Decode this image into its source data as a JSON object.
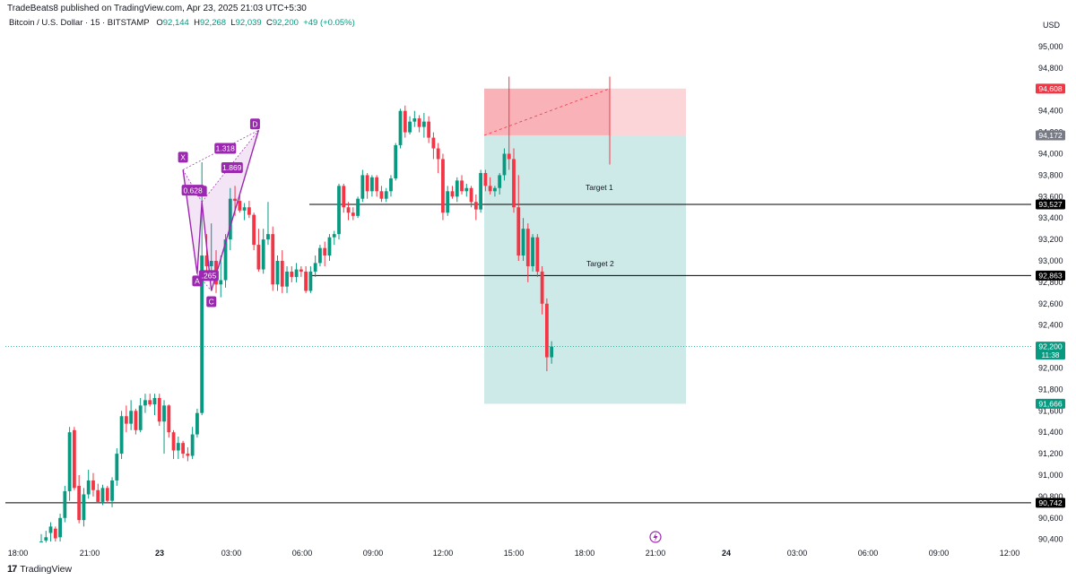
{
  "header": {
    "publisher_line": "TradeBeats8 published on TradingView.com, Apr 23, 2025 21:03 UTC+5:30",
    "symbol": "Bitcoin / U.S. Dollar · 15 · BITSTAMP",
    "open_label": "O",
    "open": "92,144",
    "high_label": "H",
    "high": "92,268",
    "low_label": "L",
    "low": "92,039",
    "close_label": "C",
    "close": "92,200",
    "change": "+49 (+0.05%)",
    "currency": "USD"
  },
  "footer": {
    "brand": "TradingView"
  },
  "colors": {
    "up": "#089981",
    "down": "#f23645",
    "pattern": "#9c27b0",
    "target_zone": "#b2dfdb",
    "stop_zone": "#f7a1a8"
  },
  "chart_data": {
    "type": "candlestick",
    "timeframe": "15",
    "exchange": "BITSTAMP",
    "x_ticks": [
      "18:00",
      "21:00",
      "23",
      "03:00",
      "06:00",
      "09:00",
      "12:00",
      "15:00",
      "18:00",
      "21:00",
      "24",
      "03:00",
      "06:00",
      "09:00",
      "12:00"
    ],
    "y_ticks": [
      90400,
      90600,
      90800,
      91000,
      91200,
      91400,
      91600,
      91800,
      92000,
      92200,
      92400,
      92600,
      92800,
      93000,
      93200,
      93400,
      93600,
      93800,
      94000,
      94200,
      94400,
      94600,
      94800,
      95000
    ],
    "y_tick_labels": [
      "90,400",
      "90,600",
      "90,800",
      "91,000",
      "91,200",
      "91,400",
      "91,600",
      "91,800",
      "92,000",
      "92,200",
      "92,400",
      "92,600",
      "92,800",
      "93,000",
      "93,200",
      "93,400",
      "93,600",
      "93,800",
      "94,000",
      "94,200",
      "94,400",
      "94,600",
      "94,800",
      "95,000"
    ],
    "ylim": [
      90350,
      95150
    ],
    "price_labels": [
      {
        "value": 94608,
        "text": "94,608",
        "color": "#f23645"
      },
      {
        "value": 94172,
        "text": "94,172",
        "color": "#787b86"
      },
      {
        "value": 93527,
        "text": "93,527",
        "color": "#000000"
      },
      {
        "value": 92863,
        "text": "92,863",
        "color": "#000000"
      },
      {
        "value": 92200,
        "text": "92,200",
        "sub": "11:38",
        "color": "#089981"
      },
      {
        "value": 91666,
        "text": "91,666",
        "color": "#089981"
      },
      {
        "value": 90742,
        "text": "90,742",
        "color": "#000000"
      }
    ],
    "horizontal_lines": [
      93527,
      92863,
      90742
    ],
    "last_price": 92200,
    "candles": [
      {
        "o": 90380,
        "h": 90450,
        "l": 90380,
        "c": 90380
      },
      {
        "o": 90390,
        "h": 90480,
        "l": 90370,
        "c": 90420
      },
      {
        "o": 90460,
        "h": 90560,
        "l": 90380,
        "c": 90520
      },
      {
        "o": 90500,
        "h": 90520,
        "l": 90380,
        "c": 90410
      },
      {
        "o": 90420,
        "h": 90640,
        "l": 90380,
        "c": 90600
      },
      {
        "o": 90600,
        "h": 90900,
        "l": 90560,
        "c": 90850
      },
      {
        "o": 90850,
        "h": 91450,
        "l": 90760,
        "c": 91400
      },
      {
        "o": 91420,
        "h": 91450,
        "l": 90860,
        "c": 90880
      },
      {
        "o": 90900,
        "h": 91000,
        "l": 90550,
        "c": 90580
      },
      {
        "o": 90580,
        "h": 90880,
        "l": 90520,
        "c": 90820
      },
      {
        "o": 90820,
        "h": 91050,
        "l": 90780,
        "c": 90950
      },
      {
        "o": 90950,
        "h": 91020,
        "l": 90800,
        "c": 90860
      },
      {
        "o": 90860,
        "h": 90920,
        "l": 90740,
        "c": 90750
      },
      {
        "o": 90750,
        "h": 90910,
        "l": 90720,
        "c": 90880
      },
      {
        "o": 90880,
        "h": 90900,
        "l": 90740,
        "c": 90760
      },
      {
        "o": 90760,
        "h": 90980,
        "l": 90700,
        "c": 90950
      },
      {
        "o": 90950,
        "h": 91250,
        "l": 90900,
        "c": 91200
      },
      {
        "o": 91200,
        "h": 91600,
        "l": 91150,
        "c": 91550
      },
      {
        "o": 91550,
        "h": 91650,
        "l": 91400,
        "c": 91480
      },
      {
        "o": 91480,
        "h": 91700,
        "l": 91420,
        "c": 91600
      },
      {
        "o": 91600,
        "h": 91620,
        "l": 91380,
        "c": 91420
      },
      {
        "o": 91420,
        "h": 91720,
        "l": 91400,
        "c": 91650
      },
      {
        "o": 91650,
        "h": 91760,
        "l": 91580,
        "c": 91700
      },
      {
        "o": 91700,
        "h": 91760,
        "l": 91640,
        "c": 91660
      },
      {
        "o": 91660,
        "h": 91760,
        "l": 91560,
        "c": 91720
      },
      {
        "o": 91720,
        "h": 91760,
        "l": 91460,
        "c": 91500
      },
      {
        "o": 91500,
        "h": 91700,
        "l": 91200,
        "c": 91650
      },
      {
        "o": 91650,
        "h": 91660,
        "l": 91350,
        "c": 91400
      },
      {
        "o": 91400,
        "h": 91420,
        "l": 91150,
        "c": 91230
      },
      {
        "o": 91230,
        "h": 91360,
        "l": 91150,
        "c": 91300
      },
      {
        "o": 91300,
        "h": 91320,
        "l": 91160,
        "c": 91200
      },
      {
        "o": 91200,
        "h": 91260,
        "l": 91130,
        "c": 91180
      },
      {
        "o": 91180,
        "h": 91450,
        "l": 91150,
        "c": 91380
      },
      {
        "o": 91380,
        "h": 91620,
        "l": 91350,
        "c": 91580
      },
      {
        "o": 91580,
        "h": 93920,
        "l": 91560,
        "c": 93050
      },
      {
        "o": 93050,
        "h": 93250,
        "l": 92900,
        "c": 92950
      },
      {
        "o": 92950,
        "h": 93350,
        "l": 92820,
        "c": 93000
      },
      {
        "o": 93000,
        "h": 93100,
        "l": 92700,
        "c": 92780
      },
      {
        "o": 92780,
        "h": 93050,
        "l": 92660,
        "c": 92820
      },
      {
        "o": 92820,
        "h": 93250,
        "l": 92750,
        "c": 93200
      },
      {
        "o": 93200,
        "h": 93680,
        "l": 93100,
        "c": 93580
      },
      {
        "o": 93580,
        "h": 93700,
        "l": 93420,
        "c": 93560
      },
      {
        "o": 93560,
        "h": 93620,
        "l": 93450,
        "c": 93470
      },
      {
        "o": 93470,
        "h": 93540,
        "l": 93380,
        "c": 93500
      },
      {
        "o": 93500,
        "h": 93560,
        "l": 93400,
        "c": 93430
      },
      {
        "o": 93430,
        "h": 93450,
        "l": 93100,
        "c": 93150
      },
      {
        "o": 93150,
        "h": 93300,
        "l": 92900,
        "c": 92920
      },
      {
        "o": 92920,
        "h": 93300,
        "l": 92880,
        "c": 93200
      },
      {
        "o": 93200,
        "h": 93550,
        "l": 93150,
        "c": 93250
      },
      {
        "o": 93250,
        "h": 93320,
        "l": 92720,
        "c": 92780
      },
      {
        "o": 92780,
        "h": 93050,
        "l": 92720,
        "c": 93000
      },
      {
        "o": 93000,
        "h": 93100,
        "l": 92700,
        "c": 92760
      },
      {
        "o": 92760,
        "h": 92950,
        "l": 92700,
        "c": 92900
      },
      {
        "o": 92900,
        "h": 92950,
        "l": 92800,
        "c": 92850
      },
      {
        "o": 92850,
        "h": 92980,
        "l": 92800,
        "c": 92920
      },
      {
        "o": 92920,
        "h": 92950,
        "l": 92850,
        "c": 92900
      },
      {
        "o": 92900,
        "h": 92950,
        "l": 92700,
        "c": 92720
      },
      {
        "o": 92720,
        "h": 92950,
        "l": 92700,
        "c": 92900
      },
      {
        "o": 92900,
        "h": 93050,
        "l": 92850,
        "c": 92980
      },
      {
        "o": 92980,
        "h": 93150,
        "l": 92950,
        "c": 93120
      },
      {
        "o": 93120,
        "h": 93180,
        "l": 92950,
        "c": 93050
      },
      {
        "o": 93050,
        "h": 93250,
        "l": 93000,
        "c": 93220
      },
      {
        "o": 93220,
        "h": 93280,
        "l": 93150,
        "c": 93250
      },
      {
        "o": 93250,
        "h": 93720,
        "l": 93200,
        "c": 93700
      },
      {
        "o": 93700,
        "h": 93720,
        "l": 93450,
        "c": 93500
      },
      {
        "o": 93500,
        "h": 93550,
        "l": 93380,
        "c": 93450
      },
      {
        "o": 93450,
        "h": 93500,
        "l": 93380,
        "c": 93420
      },
      {
        "o": 93420,
        "h": 93600,
        "l": 93400,
        "c": 93580
      },
      {
        "o": 93580,
        "h": 93850,
        "l": 93550,
        "c": 93800
      },
      {
        "o": 93800,
        "h": 93820,
        "l": 93580,
        "c": 93650
      },
      {
        "o": 93650,
        "h": 93800,
        "l": 93600,
        "c": 93780
      },
      {
        "o": 93780,
        "h": 93800,
        "l": 93600,
        "c": 93650
      },
      {
        "o": 93650,
        "h": 93700,
        "l": 93550,
        "c": 93580
      },
      {
        "o": 93580,
        "h": 93680,
        "l": 93550,
        "c": 93650
      },
      {
        "o": 93650,
        "h": 93800,
        "l": 93600,
        "c": 93770
      },
      {
        "o": 93770,
        "h": 94100,
        "l": 93750,
        "c": 94080
      },
      {
        "o": 94080,
        "h": 94420,
        "l": 94050,
        "c": 94400
      },
      {
        "o": 94400,
        "h": 94450,
        "l": 94150,
        "c": 94200
      },
      {
        "o": 94200,
        "h": 94350,
        "l": 94180,
        "c": 94300
      },
      {
        "o": 94300,
        "h": 94400,
        "l": 94250,
        "c": 94330
      },
      {
        "o": 94330,
        "h": 94360,
        "l": 94200,
        "c": 94250
      },
      {
        "o": 94250,
        "h": 94380,
        "l": 94150,
        "c": 94300
      },
      {
        "o": 94300,
        "h": 94350,
        "l": 94100,
        "c": 94150
      },
      {
        "o": 94150,
        "h": 94200,
        "l": 93950,
        "c": 94050
      },
      {
        "o": 94050,
        "h": 94100,
        "l": 93820,
        "c": 93950
      },
      {
        "o": 93950,
        "h": 94000,
        "l": 93380,
        "c": 93450
      },
      {
        "o": 93450,
        "h": 93700,
        "l": 93420,
        "c": 93650
      },
      {
        "o": 93650,
        "h": 93700,
        "l": 93580,
        "c": 93600
      },
      {
        "o": 93600,
        "h": 93780,
        "l": 93550,
        "c": 93750
      },
      {
        "o": 93750,
        "h": 93800,
        "l": 93620,
        "c": 93650
      },
      {
        "o": 93650,
        "h": 93720,
        "l": 93600,
        "c": 93680
      },
      {
        "o": 93680,
        "h": 93700,
        "l": 93500,
        "c": 93550
      },
      {
        "o": 93550,
        "h": 93620,
        "l": 93380,
        "c": 93480
      },
      {
        "o": 93480,
        "h": 93850,
        "l": 93450,
        "c": 93820
      },
      {
        "o": 93820,
        "h": 93850,
        "l": 93650,
        "c": 93700
      },
      {
        "o": 93700,
        "h": 93780,
        "l": 93620,
        "c": 93650
      },
      {
        "o": 93650,
        "h": 93700,
        "l": 93600,
        "c": 93680
      },
      {
        "o": 93680,
        "h": 93820,
        "l": 93620,
        "c": 93800
      },
      {
        "o": 93800,
        "h": 94050,
        "l": 93750,
        "c": 94000
      },
      {
        "o": 94000,
        "h": 94720,
        "l": 93850,
        "c": 93950
      },
      {
        "o": 93950,
        "h": 94050,
        "l": 93450,
        "c": 93500
      },
      {
        "o": 93500,
        "h": 93800,
        "l": 93000,
        "c": 93050
      },
      {
        "o": 93050,
        "h": 93400,
        "l": 93000,
        "c": 93300
      },
      {
        "o": 93300,
        "h": 93350,
        "l": 92800,
        "c": 92950
      },
      {
        "o": 92950,
        "h": 93250,
        "l": 92900,
        "c": 93220
      },
      {
        "o": 93220,
        "h": 93250,
        "l": 92850,
        "c": 92900
      },
      {
        "o": 92900,
        "h": 92950,
        "l": 92500,
        "c": 92600
      },
      {
        "o": 92600,
        "h": 92650,
        "l": 91970,
        "c": 92100
      },
      {
        "o": 92100,
        "h": 92250,
        "l": 92040,
        "c": 92200
      }
    ],
    "harmonic_pattern": {
      "points": [
        {
          "label": "X",
          "candle": 30,
          "price": 93850
        },
        {
          "label": "A",
          "candle": 33,
          "price": 92880
        },
        {
          "label": "B",
          "candle": 34,
          "price": 93550
        },
        {
          "label": "C",
          "candle": 36,
          "price": 92720
        },
        {
          "label": "D",
          "candle": 46,
          "price": 94220
        }
      ],
      "ratios": [
        "0.628",
        "1.318",
        "1.869",
        ".265"
      ]
    },
    "position": {
      "entry": 94172,
      "stop": 94608,
      "target": 91666
    },
    "annotations": [
      "Target 1",
      "Target 2"
    ]
  }
}
